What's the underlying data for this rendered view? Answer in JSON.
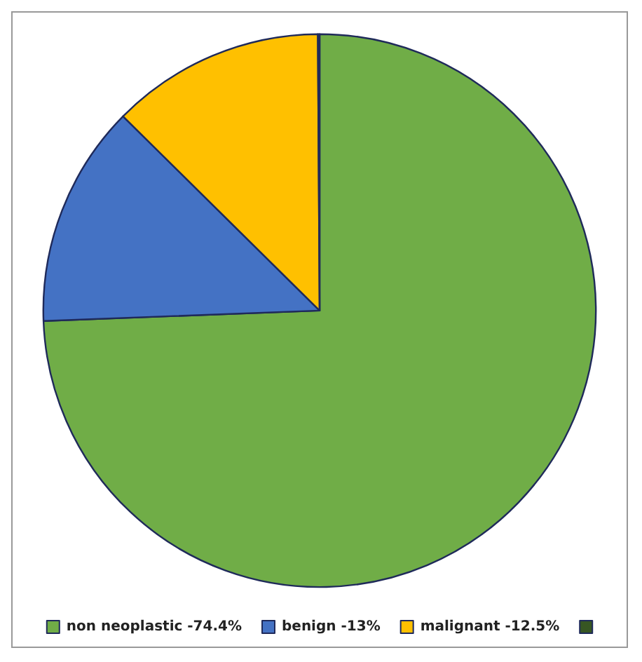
{
  "chart_data": {
    "type": "pie",
    "categories": [
      "non neoplastic -74.4%",
      "benign -13%",
      "malignant -12.5%",
      null
    ],
    "values": [
      74.4,
      13,
      12.5,
      0.1
    ],
    "colors": [
      "#70ad47",
      "#4472c4",
      "#ffc000",
      "#375623"
    ],
    "legend": "bottom"
  }
}
